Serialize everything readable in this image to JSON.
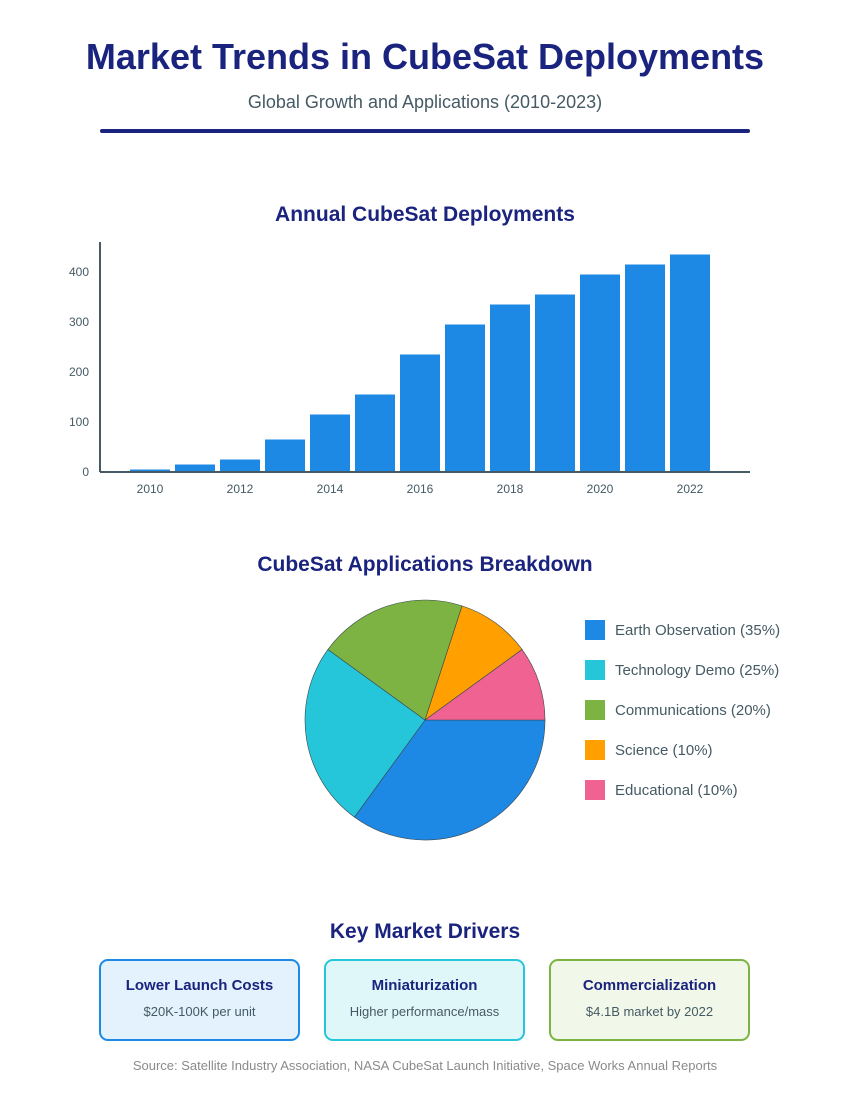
{
  "header": {
    "title": "Market Trends in CubeSat Deployments",
    "subtitle": "Global Growth and Applications (2010-2023)"
  },
  "colors": {
    "primary": "#1a237e",
    "bar": "#1e88e5",
    "text": "#455a64"
  },
  "chart_data": [
    {
      "type": "bar",
      "title": "Annual CubeSat Deployments",
      "categories": [
        "2010",
        "2011",
        "2012",
        "2013",
        "2014",
        "2015",
        "2016",
        "2017",
        "2018",
        "2019",
        "2020",
        "2021",
        "2022"
      ],
      "values": [
        5,
        15,
        25,
        65,
        115,
        155,
        235,
        295,
        335,
        355,
        395,
        415,
        435
      ],
      "x_tick_labels": [
        "2010",
        "2012",
        "2014",
        "2016",
        "2018",
        "2020",
        "2022"
      ],
      "y_ticks": [
        0,
        100,
        200,
        300,
        400
      ],
      "ylim": [
        0,
        460
      ],
      "xlabel": "",
      "ylabel": "",
      "grid": false,
      "color": "#1e88e5"
    },
    {
      "type": "pie",
      "title": "CubeSat Applications Breakdown",
      "slices": [
        {
          "label": "Earth Observation (35%)",
          "value": 35,
          "color": "#1e88e5"
        },
        {
          "label": "Technology Demo (25%)",
          "value": 25,
          "color": "#26c6da"
        },
        {
          "label": "Communications (20%)",
          "value": 20,
          "color": "#7cb342"
        },
        {
          "label": "Science (10%)",
          "value": 10,
          "color": "#ffa000"
        },
        {
          "label": "Educational (10%)",
          "value": 10,
          "color": "#f06292"
        }
      ],
      "legend_position": "right"
    }
  ],
  "drivers": {
    "title": "Key Market Drivers",
    "cards": [
      {
        "title": "Lower Launch Costs",
        "desc": "$20K-100K per unit",
        "border": "#1e88e5",
        "bg": "#e3f2fd"
      },
      {
        "title": "Miniaturization",
        "desc": "Higher performance/mass",
        "border": "#26c6da",
        "bg": "#e0f7fa"
      },
      {
        "title": "Commercialization",
        "desc": "$4.1B market by 2022",
        "border": "#7cb342",
        "bg": "#f1f8e9"
      }
    ]
  },
  "source": "Source: Satellite Industry Association, NASA CubeSat Launch Initiative, Space Works Annual Reports"
}
